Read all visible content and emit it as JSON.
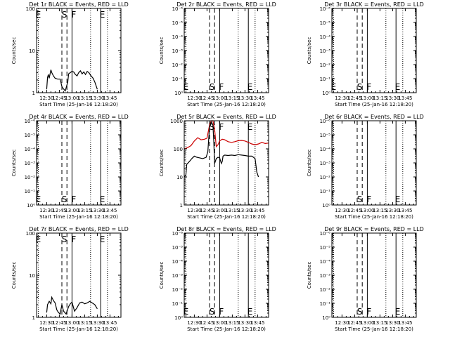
{
  "figure": {
    "xtick_labels": [
      "12:30",
      "12:45",
      "13:00",
      "13:15",
      "13:30",
      "13:45"
    ],
    "xlabel": "Start Time (25-Jan-16 12:18:20)",
    "ylabel": "Counts/sec",
    "event_markers": [
      {
        "letter": "E",
        "time": "12:20",
        "style": "dotted"
      },
      {
        "letter": "S",
        "time": "12:48",
        "style": "dashed"
      },
      {
        "letter": "S",
        "time": "12:54",
        "style": "dashed"
      },
      {
        "letter": "F",
        "time": "13:00",
        "style": "solid"
      },
      {
        "letter": "E",
        "time": "13:22",
        "style": "dotted"
      },
      {
        "letter": "E",
        "time": "13:34",
        "style": "solid"
      },
      {
        "letter": "",
        "time": "13:42",
        "style": "dotted"
      }
    ],
    "marker_labels": [
      {
        "letter": "E",
        "time": "12:20"
      },
      {
        "letter": "S",
        "time": "12:51"
      },
      {
        "letter": "F",
        "time": "13:02"
      },
      {
        "letter": "E",
        "time": "13:36"
      }
    ]
  },
  "chart_data": [
    {
      "type": "line",
      "title": "Det 1r BLACK = Events, RED = LLD",
      "yscale": "log",
      "ylim": [
        1,
        100
      ],
      "ytick_labels": [
        "1",
        "10",
        "100"
      ],
      "x_range": [
        "12:18",
        "13:58"
      ],
      "labels_pos": "top",
      "marker_labels_shown": [
        true,
        true,
        true,
        true
      ],
      "series": [
        {
          "color": "#000000",
          "x": [
            "12:30",
            "12:31",
            "12:32",
            "12:33",
            "12:35",
            "12:36",
            "12:38",
            "12:40",
            "12:43",
            "12:46",
            "12:48",
            "12:49",
            "12:52",
            "12:55",
            "12:56",
            "12:58",
            "13:00",
            "13:02",
            "13:04",
            "13:06",
            "13:08",
            "13:10",
            "13:12",
            "13:14",
            "13:16",
            "13:18",
            "13:20",
            "13:22",
            "13:25",
            "13:27",
            "13:30"
          ],
          "values": [
            1.2,
            2.3,
            2.7,
            2.2,
            3.5,
            3.0,
            2.5,
            2.2,
            2.1,
            2.1,
            1.4,
            1.3,
            1.1,
            1.8,
            2.8,
            3.0,
            3.2,
            3.1,
            2.7,
            2.5,
            3.0,
            3.3,
            2.8,
            3.1,
            2.7,
            3.2,
            3.0,
            2.6,
            2.2,
            1.8,
            1.2
          ]
        }
      ]
    },
    {
      "type": "line",
      "title": "Det 2r BLACK = Events, RED = LLD",
      "yscale": "log",
      "ylim": [
        1,
        1000000
      ],
      "ytick_labels": [
        "10⁰",
        "10⁻¹",
        "10⁻²",
        "10⁻³",
        "10⁻⁴",
        "10⁻⁵",
        "10⁻⁶"
      ],
      "x_range": [
        "12:18",
        "13:58"
      ],
      "labels_pos": "bottom",
      "marker_labels_shown": [
        true,
        true,
        true,
        true
      ],
      "series": []
    },
    {
      "type": "line",
      "title": "Det 3r BLACK = Events, RED = LLD",
      "yscale": "log",
      "ylim": [
        1,
        1000000
      ],
      "ytick_labels": [
        "10⁰",
        "10⁻¹",
        "10⁻²",
        "10⁻³",
        "10⁻⁴",
        "10⁻⁵",
        "10⁻⁶"
      ],
      "x_range": [
        "12:18",
        "13:58"
      ],
      "labels_pos": "bottom",
      "marker_labels_shown": [
        true,
        true,
        true,
        true
      ],
      "series": []
    },
    {
      "type": "line",
      "title": "Det 4r BLACK = Events, RED = LLD",
      "yscale": "log",
      "ylim": [
        1,
        1000000
      ],
      "ytick_labels": [
        "10⁰",
        "10⁻¹",
        "10⁻²",
        "10⁻³",
        "10⁻⁴",
        "10⁻⁵",
        "10⁻⁶"
      ],
      "x_range": [
        "12:18",
        "13:58"
      ],
      "labels_pos": "bottom",
      "marker_labels_shown": [
        true,
        true,
        true,
        true
      ],
      "series": []
    },
    {
      "type": "line",
      "title": "Det 5r BLACK = Events, RED = LLD",
      "yscale": "log",
      "ylim": [
        1,
        1000
      ],
      "ytick_labels": [
        "1",
        "10",
        "100",
        "1000"
      ],
      "x_range": [
        "12:18",
        "13:58"
      ],
      "labels_pos": "top",
      "marker_labels_shown": [
        false,
        true,
        true,
        true
      ],
      "series": [
        {
          "color": "#cc0000",
          "x": [
            "12:18",
            "12:22",
            "12:26",
            "12:30",
            "12:34",
            "12:38",
            "12:42",
            "12:45",
            "12:48",
            "12:50",
            "12:52",
            "12:54",
            "12:56",
            "12:58",
            "13:00",
            "13:03",
            "13:06",
            "13:10",
            "13:14",
            "13:18",
            "13:22",
            "13:26",
            "13:30",
            "13:34",
            "13:38",
            "13:42",
            "13:46",
            "13:50",
            "13:54",
            "13:58"
          ],
          "values": [
            100,
            110,
            130,
            190,
            250,
            210,
            220,
            240,
            700,
            1100,
            1000,
            500,
            120,
            140,
            190,
            220,
            210,
            180,
            170,
            180,
            195,
            200,
            190,
            170,
            150,
            140,
            150,
            170,
            155,
            160
          ]
        },
        {
          "color": "#000000",
          "x": [
            "12:18",
            "12:20",
            "12:21",
            "12:24",
            "12:27",
            "12:30",
            "12:33",
            "12:36",
            "12:40",
            "12:44",
            "12:46",
            "12:48",
            "12:50",
            "12:52",
            "12:53",
            "12:54",
            "12:56",
            "12:58",
            "13:00",
            "13:02",
            "13:03",
            "13:04",
            "13:06",
            "13:10",
            "13:14",
            "13:18",
            "13:22",
            "13:26",
            "13:30",
            "13:34",
            "13:38",
            "13:40",
            "13:42",
            "13:44",
            "13:46"
          ],
          "values": [
            10,
            12,
            28,
            35,
            45,
            55,
            50,
            48,
            45,
            50,
            80,
            600,
            900,
            700,
            200,
            30,
            45,
            50,
            48,
            30,
            35,
            55,
            60,
            58,
            60,
            58,
            62,
            60,
            58,
            55,
            55,
            50,
            45,
            15,
            10
          ]
        }
      ]
    },
    {
      "type": "line",
      "title": "Det 6r BLACK = Events, RED = LLD",
      "yscale": "log",
      "ylim": [
        1,
        1000000
      ],
      "ytick_labels": [
        "10⁰",
        "10⁻¹",
        "10⁻²",
        "10⁻³",
        "10⁻⁴",
        "10⁻⁵",
        "10⁻⁶"
      ],
      "x_range": [
        "12:18",
        "13:58"
      ],
      "labels_pos": "bottom",
      "marker_labels_shown": [
        false,
        true,
        true,
        true
      ],
      "series": []
    },
    {
      "type": "line",
      "title": "Det 7r BLACK = Events, RED = LLD",
      "yscale": "log",
      "ylim": [
        1,
        100
      ],
      "ytick_labels": [
        "1",
        "10",
        "100"
      ],
      "x_range": [
        "12:18",
        "13:58"
      ],
      "labels_pos": "top",
      "marker_labels_shown": [
        true,
        true,
        true,
        true
      ],
      "series": [
        {
          "color": "#000000",
          "x": [
            "12:30",
            "12:31",
            "12:33",
            "12:35",
            "12:36",
            "12:38",
            "12:40",
            "12:42",
            "12:44",
            "12:46",
            "12:48",
            "12:50",
            "12:53",
            "12:56",
            "12:58",
            "13:00",
            "13:03",
            "13:06",
            "13:09",
            "13:12",
            "13:15",
            "13:18",
            "13:21",
            "13:24",
            "13:27",
            "13:30"
          ],
          "values": [
            1.3,
            2.0,
            2.4,
            2.1,
            3.0,
            2.5,
            2.2,
            1.5,
            1.3,
            1.2,
            2.0,
            1.4,
            1.2,
            1.8,
            2.1,
            2.3,
            1.4,
            1.7,
            2.2,
            2.3,
            2.1,
            2.2,
            2.4,
            2.2,
            2.0,
            1.6
          ]
        }
      ]
    },
    {
      "type": "line",
      "title": "Det 8r BLACK = Events, RED = LLD",
      "yscale": "log",
      "ylim": [
        1,
        1000000
      ],
      "ytick_labels": [
        "10⁰",
        "10⁻¹",
        "10⁻²",
        "10⁻³",
        "10⁻⁴",
        "10⁻⁵",
        "10⁻⁶"
      ],
      "x_range": [
        "12:18",
        "13:58"
      ],
      "labels_pos": "bottom",
      "marker_labels_shown": [
        true,
        true,
        true,
        true
      ],
      "series": []
    },
    {
      "type": "line",
      "title": "Det 9r BLACK = Events, RED = LLD",
      "yscale": "log",
      "ylim": [
        1,
        1000000
      ],
      "ytick_labels": [
        "10⁰",
        "10⁻¹",
        "10⁻²",
        "10⁻³",
        "10⁻⁴",
        "10⁻⁵",
        "10⁻⁶"
      ],
      "x_range": [
        "12:18",
        "13:58"
      ],
      "labels_pos": "bottom",
      "marker_labels_shown": [
        false,
        true,
        true,
        true
      ],
      "series": []
    }
  ]
}
